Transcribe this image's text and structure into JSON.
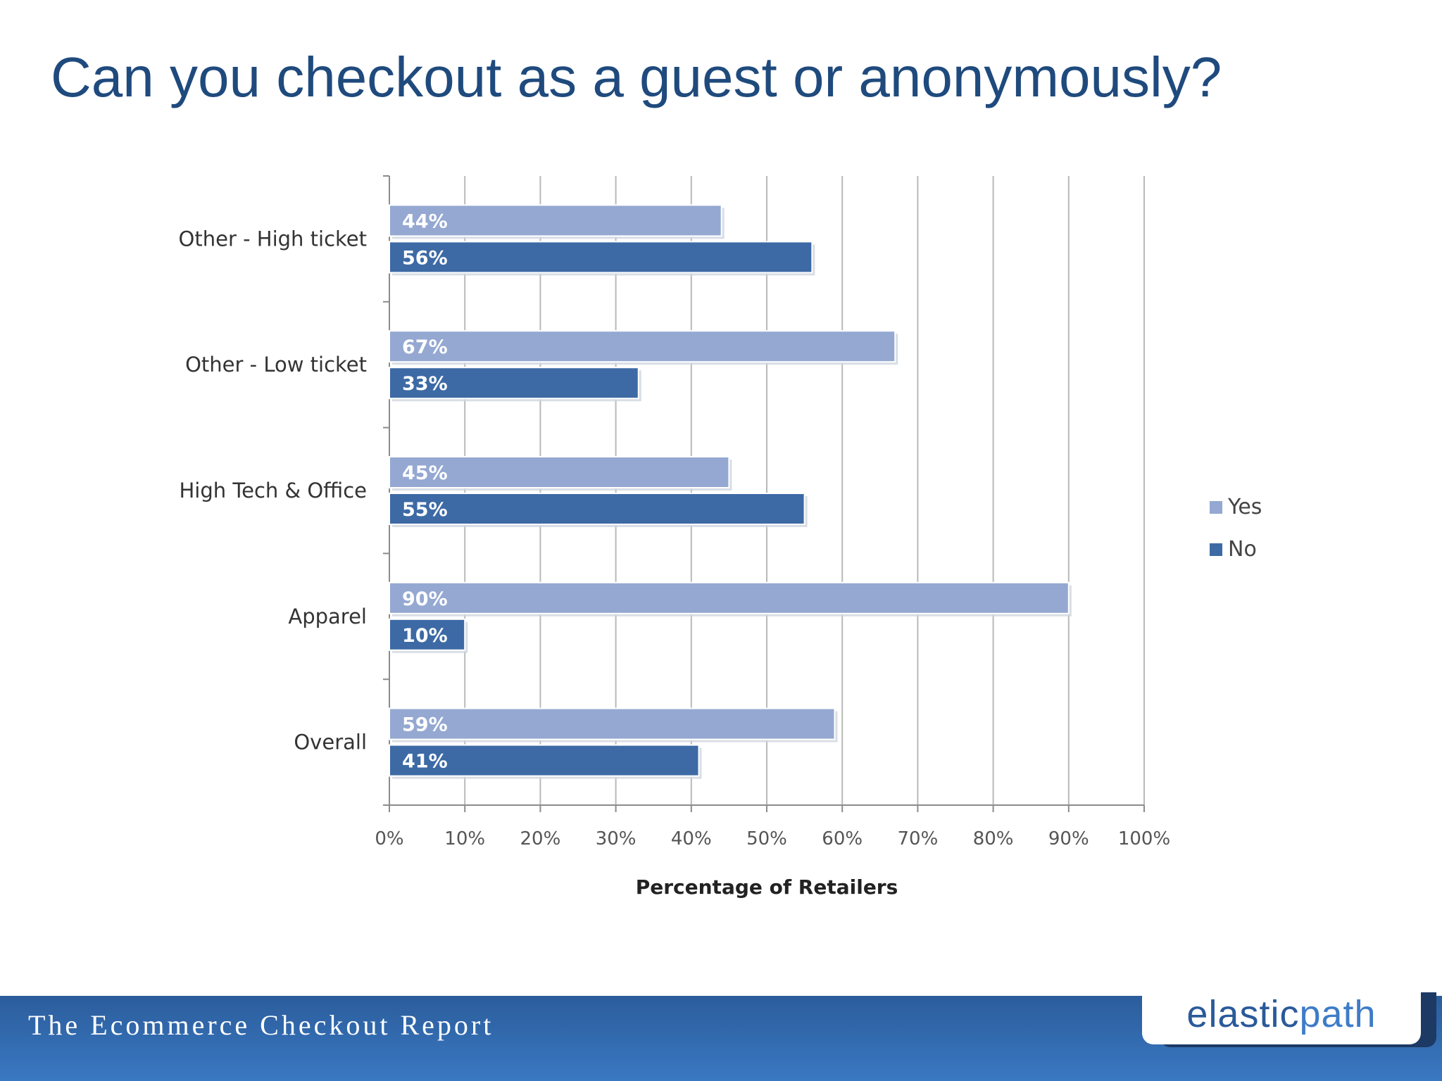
{
  "slide": {
    "title": "Can you checkout as a guest or anonymously?",
    "footer_text": "The Ecommerce Checkout Report",
    "logo_part1": "elastic",
    "logo_part2": "path"
  },
  "colors": {
    "yes": "#94a8d1",
    "no": "#3d6aa5",
    "title": "#1f4a7d",
    "footer": "#2f65a8"
  },
  "chart_data": {
    "type": "bar",
    "orientation": "horizontal",
    "categories": [
      "Other - High ticket",
      "Other - Low ticket",
      "High Tech & Office",
      "Apparel",
      "Overall"
    ],
    "series": [
      {
        "name": "Yes",
        "values": [
          44,
          67,
          45,
          90,
          59
        ],
        "labels": [
          "44%",
          "67%",
          "45%",
          "90%",
          "59%"
        ]
      },
      {
        "name": "No",
        "values": [
          56,
          33,
          55,
          10,
          41
        ],
        "labels": [
          "56%",
          "33%",
          "55%",
          "10%",
          "41%"
        ]
      }
    ],
    "xlabel": "Percentage of Retailers",
    "xlim": [
      0,
      100
    ],
    "xticks": [
      0,
      10,
      20,
      30,
      40,
      50,
      60,
      70,
      80,
      90,
      100
    ],
    "xtick_labels": [
      "0%",
      "10%",
      "20%",
      "30%",
      "40%",
      "50%",
      "60%",
      "70%",
      "80%",
      "90%",
      "100%"
    ],
    "grid": "vertical",
    "legend": "right"
  }
}
